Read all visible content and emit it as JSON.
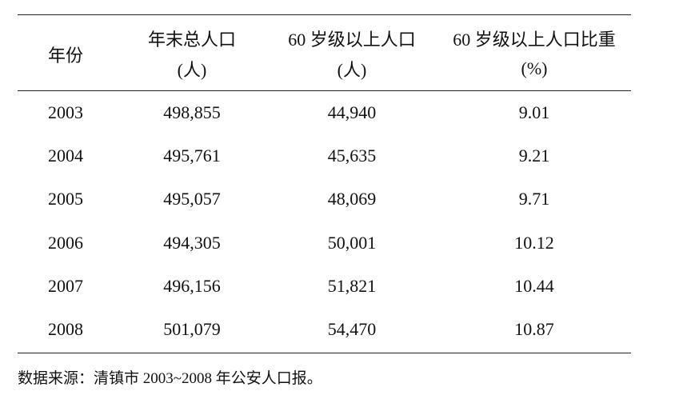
{
  "table": {
    "header": [
      [
        "年份"
      ],
      [
        "年末总人口",
        "(人)"
      ],
      [
        "60 岁级以上人口",
        "(人)"
      ],
      [
        "60 岁级以上人口比重",
        "(%)"
      ]
    ],
    "rows": [
      [
        "2003",
        "498,855",
        "44,940",
        "9.01"
      ],
      [
        "2004",
        "495,761",
        "45,635",
        "9.21"
      ],
      [
        "2005",
        "495,057",
        "48,069",
        "9.71"
      ],
      [
        "2006",
        "494,305",
        "50,001",
        "10.12"
      ],
      [
        "2007",
        "496,156",
        "51,821",
        "10.44"
      ],
      [
        "2008",
        "501,079",
        "54,470",
        "10.87"
      ]
    ]
  },
  "footnote": "数据来源：清镇市 2003~2008 年公安人口报。"
}
